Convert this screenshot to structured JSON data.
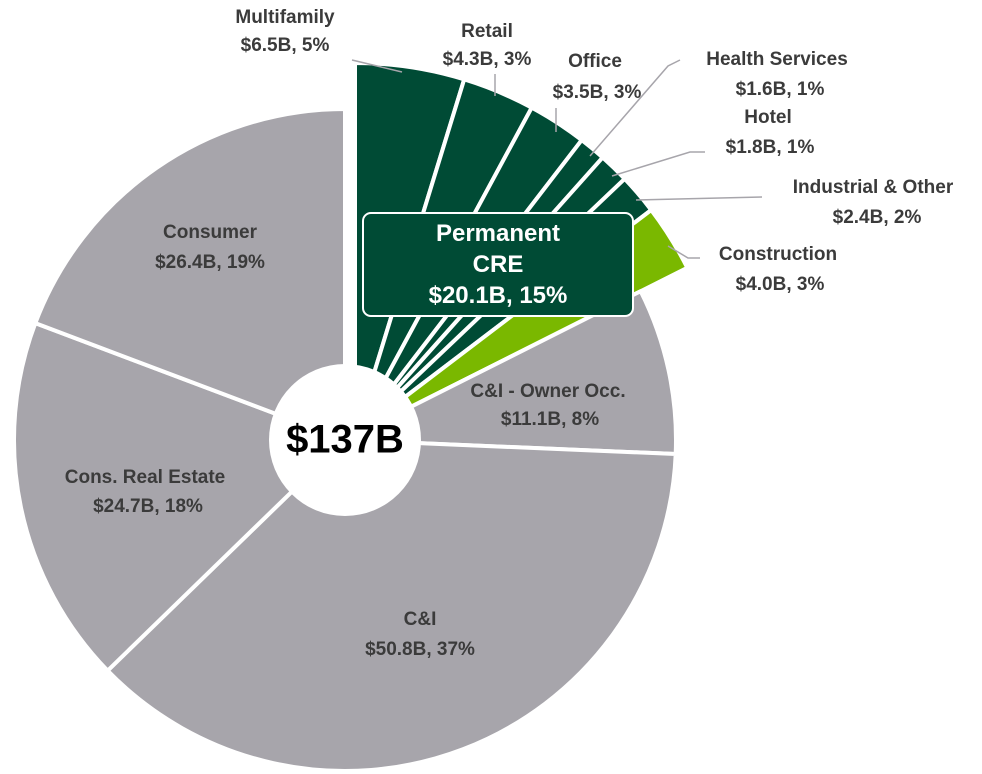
{
  "chart_data": {
    "type": "pie",
    "categories": [
      "Multifamily",
      "Retail",
      "Office",
      "Health Services",
      "Hotel",
      "Industrial & Other",
      "Construction",
      "C&I - Owner Occ.",
      "C&I",
      "Cons. Real Estate",
      "Consumer"
    ],
    "values": [
      6.5,
      4.3,
      3.5,
      1.6,
      1.8,
      2.4,
      4.0,
      11.1,
      50.8,
      24.7,
      26.4
    ],
    "value_labels": [
      "$6.5B, 5%",
      "$4.3B, 3%",
      "$3.5B, 3%",
      "$1.6B, 1%",
      "$1.8B, 1%",
      "$2.4B, 2%",
      "$4.0B, 3%",
      "$11.1B, 8%",
      "$50.8B, 37%",
      "$24.7B, 18%",
      "$26.4B, 19%"
    ],
    "colors": [
      "#004b35",
      "#004b35",
      "#004b35",
      "#004b35",
      "#004b35",
      "#004b35",
      "#7ab800",
      "#a7a5ab",
      "#a7a5ab",
      "#a7a5ab",
      "#a7a5ab"
    ],
    "center_label": "$137B",
    "annotation": {
      "text": "Permanent CRE",
      "value_label": "$20.1B, 15%"
    }
  }
}
